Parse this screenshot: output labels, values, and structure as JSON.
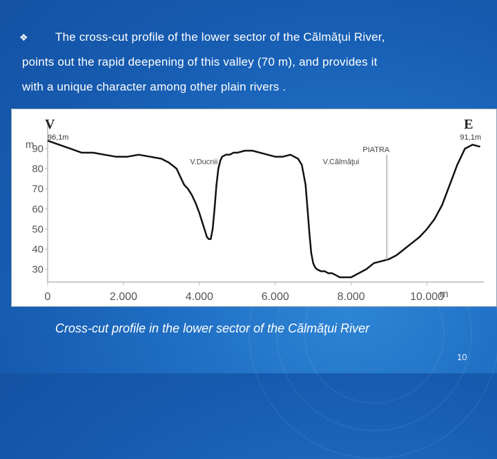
{
  "slide": {
    "bullet_symbol": "❖",
    "paragraph_lines": [
      "The cross-cut profile of the lower sector of the Călmăţui River,",
      "points out the rapid deepening of this valley (70 m), and provides it",
      "with a unique character among other plain rivers ."
    ],
    "caption": "Cross-cut profile in the lower sector of the Călmăţui River",
    "slide_number": "10"
  },
  "chart_data": {
    "type": "line",
    "ylabel": "m",
    "xlabel": "m",
    "xlim": [
      0,
      11500
    ],
    "ylim": [
      25,
      100
    ],
    "x_ticks": [
      0,
      2000,
      4000,
      6000,
      8000,
      10000
    ],
    "x_tick_labels": [
      "0",
      "2.000",
      "4.000",
      "6.000",
      "8.000",
      "10.000"
    ],
    "y_ticks": [
      30,
      40,
      50,
      60,
      70,
      80,
      90
    ],
    "y_tick_labels": [
      "30",
      "40",
      "50",
      "60",
      "70",
      "80",
      "90"
    ],
    "series": [
      {
        "x": [
          0,
          300,
          600,
          900,
          1200,
          1500,
          1800,
          2100,
          2400,
          2700,
          3000,
          3200,
          3400,
          3500,
          3600,
          3700,
          3800,
          3900,
          4000,
          4100,
          4200,
          4250,
          4300,
          4350,
          4400,
          4450,
          4500,
          4550,
          4600,
          4700,
          4800,
          4900,
          5000,
          5200,
          5400,
          5600,
          5800,
          6000,
          6200,
          6400,
          6500,
          6600,
          6700,
          6800,
          6850,
          6900,
          6950,
          7000,
          7050,
          7100,
          7200,
          7300,
          7400,
          7500,
          7600,
          7700,
          7800,
          7900,
          8000,
          8200,
          8400,
          8600,
          8800,
          9000,
          9200,
          9400,
          9600,
          9800,
          10000,
          10200,
          10400,
          10600,
          10800,
          11000,
          11200,
          11400
        ],
        "y": [
          94,
          92,
          90,
          88,
          88,
          87,
          86,
          86,
          87,
          86,
          85,
          83,
          80,
          76,
          72,
          70,
          67,
          63,
          58,
          52,
          46,
          45,
          45,
          50,
          60,
          72,
          80,
          84,
          86,
          87,
          87,
          88,
          88,
          89,
          89,
          88,
          87,
          86,
          86,
          87,
          86,
          85,
          82,
          72,
          60,
          48,
          38,
          33,
          31,
          30,
          29,
          29,
          28,
          28,
          27,
          26,
          26,
          26,
          26,
          28,
          30,
          33,
          34,
          35,
          37,
          40,
          43,
          46,
          50,
          55,
          62,
          72,
          82,
          90,
          92,
          91
        ]
      }
    ],
    "annotations": [
      {
        "text": "V",
        "x": 0,
        "y": 97,
        "style": "endpoint-letter"
      },
      {
        "text": "96,1m",
        "x": 0,
        "y": 94,
        "style": "height"
      },
      {
        "text": "E",
        "x": 11400,
        "y": 97,
        "style": "endpoint-letter"
      },
      {
        "text": "91,1m",
        "x": 11400,
        "y": 94,
        "style": "height"
      },
      {
        "text": "V.Ducnii",
        "x": 4300,
        "y": 83,
        "style": "place"
      },
      {
        "text": "V.Călmăţui",
        "x": 7800,
        "y": 83,
        "style": "place"
      },
      {
        "text": "PIATRA",
        "x": 8850,
        "y": 89,
        "style": "place"
      }
    ]
  }
}
